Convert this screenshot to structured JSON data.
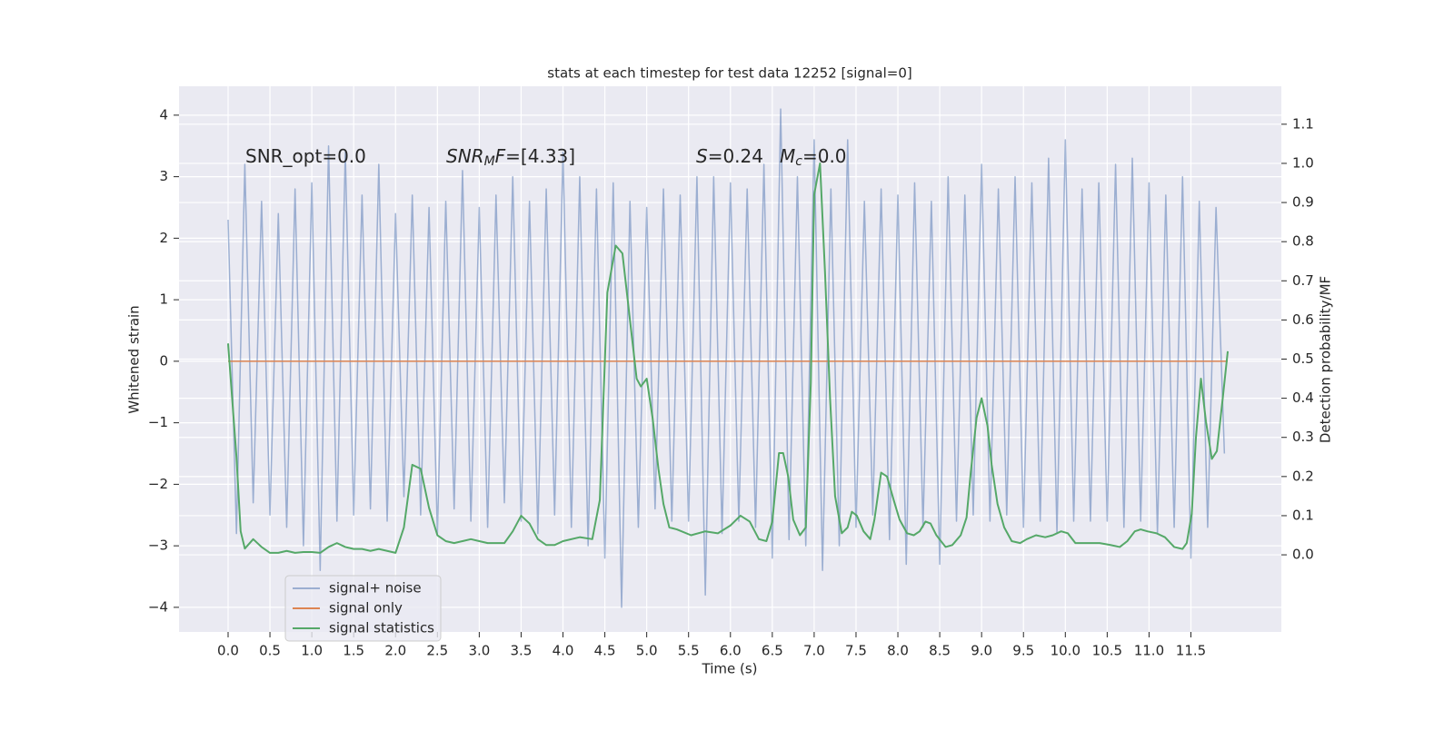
{
  "chart_data": {
    "type": "line",
    "title": "stats at each timestep for test data 12252 [signal=0]",
    "xlabel": "Time (s)",
    "ylabel": "Whitened strain",
    "y2label": "Detection probability/MF",
    "xlim": [
      -0.586,
      12.58
    ],
    "ylim": [
      -4.4,
      4.47
    ],
    "y2lim": [
      -0.197,
      1.197
    ],
    "xticks": [
      {
        "value": 0,
        "label": "0.0"
      },
      0.5,
      {
        "value": 1,
        "label": "1.0"
      },
      1.5,
      {
        "value": 2,
        "label": "2.0"
      },
      2.5,
      {
        "value": 3,
        "label": "3.0"
      },
      3.5,
      {
        "value": 4,
        "label": "4.0"
      },
      4.5,
      {
        "value": 5,
        "label": "5.0"
      },
      5.5,
      {
        "value": 6,
        "label": "6.0"
      },
      6.5,
      {
        "value": 7,
        "label": "7.0"
      },
      7.5,
      {
        "value": 8,
        "label": "8.0"
      },
      8.5,
      {
        "value": 9,
        "label": "9.0"
      },
      9.5,
      {
        "value": 10,
        "label": "10.0"
      },
      10.5,
      {
        "value": 11,
        "label": "11.0"
      },
      11.5
    ],
    "yticks": [
      {
        "value": -4,
        "label": "−4"
      },
      {
        "value": -3,
        "label": "−3"
      },
      {
        "value": -2,
        "label": "−2"
      },
      {
        "value": -1,
        "label": "−1"
      },
      0,
      1,
      2,
      3,
      4
    ],
    "y2ticks": [
      {
        "value": 0,
        "label": "0.0"
      },
      0.1,
      0.2,
      0.3,
      0.4,
      0.5,
      0.6,
      0.7,
      0.8,
      0.9,
      {
        "value": 1,
        "label": "1.0"
      },
      1.1
    ],
    "grid": true,
    "legend": "lower left",
    "annotations": [
      [
        {
          "text": "SNR_opt=0.0"
        }
      ],
      [
        {
          "text": "SNR",
          "style": "italic"
        },
        {
          "text": "M",
          "style": "sub-italic"
        },
        {
          "text": "F",
          "style": "italic"
        },
        {
          "text": "=[4.33]"
        }
      ],
      [
        {
          "text": "S",
          "style": "italic"
        },
        {
          "text": "=0.24"
        }
      ],
      [
        {
          "text": "M",
          "style": "italic"
        },
        {
          "text": "c",
          "style": "sub-italic"
        },
        {
          "text": "=0.0"
        }
      ]
    ],
    "series": [
      {
        "name": "signal+ noise",
        "color": "#4c72b0",
        "opacity": 0.5,
        "x": [
          0.0,
          0.1,
          0.2,
          0.3,
          0.4,
          0.5,
          0.6,
          0.7,
          0.8,
          0.9,
          1.0,
          1.1,
          1.2,
          1.3,
          1.4,
          1.5,
          1.6,
          1.7,
          1.8,
          1.9,
          2.0,
          2.1,
          2.2,
          2.3,
          2.4,
          2.5,
          2.6,
          2.7,
          2.8,
          2.9,
          3.0,
          3.1,
          3.2,
          3.3,
          3.4,
          3.5,
          3.6,
          3.7,
          3.8,
          3.9,
          4.0,
          4.1,
          4.2,
          4.3,
          4.4,
          4.5,
          4.6,
          4.7,
          4.8,
          4.9,
          5.0,
          5.1,
          5.2,
          5.3,
          5.4,
          5.5,
          5.6,
          5.7,
          5.8,
          5.9,
          6.0,
          6.1,
          6.2,
          6.3,
          6.4,
          6.5,
          6.6,
          6.7,
          6.8,
          6.9,
          7.0,
          7.1,
          7.2,
          7.3,
          7.4,
          7.5,
          7.6,
          7.7,
          7.8,
          7.9,
          8.0,
          8.1,
          8.2,
          8.3,
          8.4,
          8.5,
          8.6,
          8.7,
          8.8,
          8.9,
          9.0,
          9.1,
          9.2,
          9.3,
          9.4,
          9.5,
          9.6,
          9.7,
          9.8,
          9.9,
          10.0,
          10.1,
          10.2,
          10.3,
          10.4,
          10.5,
          10.6,
          10.7,
          10.8,
          10.9,
          11.0,
          11.1,
          11.2,
          11.3,
          11.4,
          11.5,
          11.6,
          11.7,
          11.8,
          11.9
        ],
        "values": [
          2.3,
          -2.8,
          3.2,
          -2.3,
          2.6,
          -2.5,
          2.4,
          -2.7,
          2.8,
          -3.0,
          2.9,
          -3.4,
          3.5,
          -2.6,
          3.4,
          -2.5,
          2.7,
          -2.4,
          3.2,
          -2.6,
          2.4,
          -2.2,
          2.7,
          -2.5,
          2.5,
          -2.8,
          2.6,
          -2.4,
          3.1,
          -2.6,
          2.5,
          -2.7,
          2.7,
          -2.3,
          3.0,
          -2.6,
          2.6,
          -2.8,
          2.8,
          -2.5,
          3.4,
          -2.7,
          3.0,
          -3.0,
          2.8,
          -3.2,
          2.9,
          -4.0,
          2.6,
          -2.7,
          2.5,
          -2.4,
          2.8,
          -2.6,
          2.7,
          -2.6,
          3.0,
          -3.8,
          3.0,
          -2.8,
          2.9,
          -2.6,
          2.8,
          -2.7,
          3.2,
          -3.2,
          4.1,
          -2.9,
          3.0,
          -3.0,
          3.6,
          -3.4,
          2.8,
          -3.0,
          3.6,
          -2.7,
          2.6,
          -2.5,
          2.8,
          -2.9,
          2.7,
          -3.3,
          2.9,
          -2.7,
          2.6,
          -3.3,
          3.0,
          -2.6,
          2.7,
          -2.5,
          3.2,
          -2.6,
          2.8,
          -2.5,
          3.0,
          -2.7,
          2.9,
          -2.6,
          3.3,
          -2.8,
          3.6,
          -2.6,
          2.8,
          -2.6,
          2.9,
          -2.6,
          3.2,
          -2.7,
          3.3,
          -2.6,
          2.9,
          -2.8,
          2.7,
          -2.7,
          3.0,
          -3.2,
          2.6,
          -2.7,
          2.5,
          -1.5
        ]
      },
      {
        "name": "signal only",
        "color": "#dd8452",
        "x": [
          0.0,
          11.94
        ],
        "values": [
          0,
          0
        ]
      },
      {
        "name": "signal statistics",
        "color": "#55a868",
        "axis": "y2",
        "x": [
          0.0,
          0.1,
          0.15,
          0.2,
          0.3,
          0.4,
          0.5,
          0.6,
          0.7,
          0.8,
          0.9,
          1.0,
          1.1,
          1.2,
          1.3,
          1.4,
          1.5,
          1.6,
          1.7,
          1.8,
          1.9,
          2.0,
          2.1,
          2.2,
          2.3,
          2.4,
          2.5,
          2.6,
          2.7,
          2.8,
          2.9,
          3.0,
          3.1,
          3.2,
          3.3,
          3.4,
          3.5,
          3.6,
          3.7,
          3.8,
          3.9,
          4.0,
          4.2,
          4.35,
          4.44,
          4.53,
          4.63,
          4.71,
          4.8,
          4.88,
          4.93,
          5.0,
          5.07,
          5.14,
          5.2,
          5.27,
          5.36,
          5.53,
          5.7,
          5.85,
          6.0,
          6.12,
          6.23,
          6.34,
          6.43,
          6.5,
          6.58,
          6.63,
          6.69,
          6.75,
          6.83,
          6.9,
          6.96,
          7.0,
          7.07,
          7.13,
          7.19,
          7.25,
          7.33,
          7.4,
          7.45,
          7.51,
          7.59,
          7.67,
          7.72,
          7.8,
          7.87,
          7.95,
          8.02,
          8.11,
          8.19,
          8.26,
          8.33,
          8.39,
          8.46,
          8.57,
          8.65,
          8.75,
          8.82,
          8.87,
          8.94,
          9.0,
          9.07,
          9.12,
          9.19,
          9.27,
          9.36,
          9.46,
          9.54,
          9.65,
          9.76,
          9.85,
          9.95,
          10.03,
          10.12,
          10.25,
          10.41,
          10.54,
          10.65,
          10.74,
          10.83,
          10.9,
          10.98,
          11.09,
          11.19,
          11.3,
          11.4,
          11.45,
          11.51,
          11.56,
          11.62,
          11.68,
          11.75,
          11.81,
          11.88,
          11.94
        ],
        "values": [
          0.54,
          0.25,
          0.06,
          0.016,
          0.04,
          0.02,
          0.005,
          0.005,
          0.01,
          0.005,
          0.007,
          0.007,
          0.005,
          0.02,
          0.03,
          0.02,
          0.015,
          0.015,
          0.01,
          0.015,
          0.01,
          0.005,
          0.07,
          0.23,
          0.22,
          0.12,
          0.05,
          0.035,
          0.03,
          0.035,
          0.04,
          0.035,
          0.03,
          0.03,
          0.03,
          0.06,
          0.1,
          0.08,
          0.04,
          0.025,
          0.025,
          0.035,
          0.045,
          0.04,
          0.14,
          0.67,
          0.79,
          0.77,
          0.6,
          0.45,
          0.43,
          0.45,
          0.35,
          0.22,
          0.13,
          0.07,
          0.065,
          0.05,
          0.06,
          0.055,
          0.075,
          0.1,
          0.085,
          0.04,
          0.035,
          0.085,
          0.26,
          0.26,
          0.2,
          0.09,
          0.05,
          0.07,
          0.44,
          0.92,
          1.0,
          0.72,
          0.4,
          0.15,
          0.055,
          0.07,
          0.11,
          0.1,
          0.06,
          0.04,
          0.09,
          0.21,
          0.2,
          0.14,
          0.09,
          0.055,
          0.05,
          0.06,
          0.085,
          0.08,
          0.05,
          0.02,
          0.025,
          0.05,
          0.095,
          0.21,
          0.35,
          0.4,
          0.33,
          0.23,
          0.13,
          0.07,
          0.035,
          0.03,
          0.04,
          0.05,
          0.045,
          0.05,
          0.06,
          0.055,
          0.03,
          0.03,
          0.03,
          0.025,
          0.02,
          0.035,
          0.06,
          0.065,
          0.06,
          0.055,
          0.045,
          0.02,
          0.015,
          0.03,
          0.105,
          0.3,
          0.45,
          0.34,
          0.245,
          0.265,
          0.4,
          0.52
        ]
      }
    ]
  }
}
